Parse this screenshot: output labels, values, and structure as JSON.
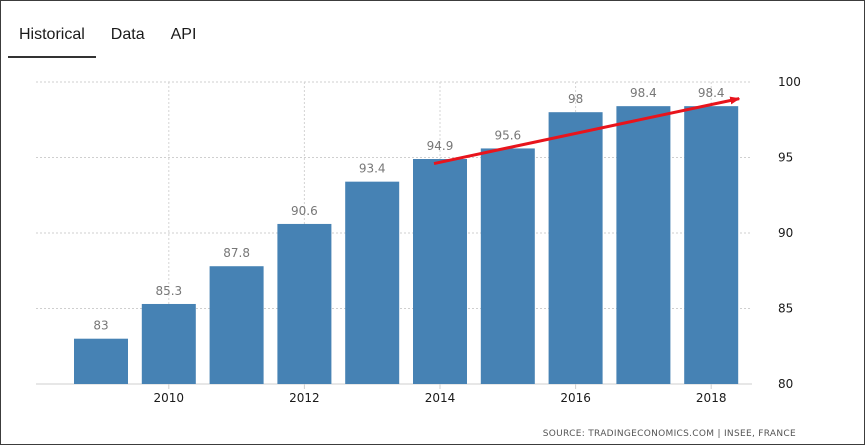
{
  "tabs": [
    {
      "label": "Historical",
      "active": true
    },
    {
      "label": "Data",
      "active": false
    },
    {
      "label": "API",
      "active": false
    }
  ],
  "chart_data": {
    "type": "bar",
    "categories": [
      "2009",
      "2010",
      "2011",
      "2012",
      "2013",
      "2014",
      "2015",
      "2016",
      "2017",
      "2018"
    ],
    "x_tick_labels": [
      "2010",
      "2012",
      "2014",
      "2016",
      "2018"
    ],
    "series": [
      {
        "values": [
          83,
          85.3,
          87.8,
          90.6,
          93.4,
          94.9,
          95.6,
          98,
          98.4,
          98.4
        ]
      }
    ],
    "data_labels": [
      "83",
      "85.3",
      "87.8",
      "90.6",
      "93.4",
      "94.9",
      "95.6",
      "98",
      "98.4",
      "98.4"
    ],
    "y_ticks": [
      80,
      85,
      90,
      95,
      100
    ],
    "ylim": [
      80,
      100
    ],
    "y_axis_side": "right",
    "grid": true,
    "bar_color": "#4682b4",
    "annotation": {
      "type": "arrow",
      "color": "#e8141c",
      "from": {
        "x": "2014",
        "y": 94.6
      },
      "to": {
        "x": "2018",
        "y": 98.9
      }
    },
    "source": "SOURCE: TRADINGECONOMICS.COM | INSEE, FRANCE"
  }
}
